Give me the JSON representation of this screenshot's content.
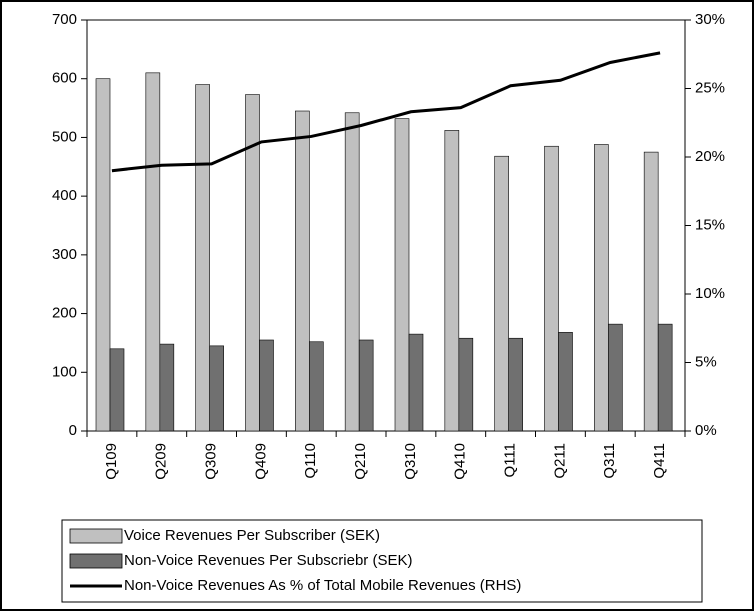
{
  "chart_data": {
    "type": "bar_line",
    "categories": [
      "Q109",
      "Q209",
      "Q309",
      "Q409",
      "Q110",
      "Q210",
      "Q310",
      "Q410",
      "Q111",
      "Q211",
      "Q311",
      "Q411"
    ],
    "series": [
      {
        "name": "Voice Revenues Per Subscriber (SEK)",
        "type": "bar",
        "color": "#c0c0c0",
        "values": [
          600,
          610,
          590,
          573,
          545,
          542,
          532,
          512,
          468,
          485,
          488,
          475
        ]
      },
      {
        "name": "Non-Voice Revenues Per Subscriebr (SEK)",
        "type": "bar",
        "color": "#707070",
        "values": [
          140,
          148,
          145,
          155,
          152,
          155,
          165,
          158,
          158,
          168,
          182,
          182
        ]
      },
      {
        "name": "Non-Voice Revenues As % of Total Mobile Revenues (RHS)",
        "type": "line",
        "color": "#000000",
        "axis": "y2",
        "values": [
          19.0,
          19.4,
          19.5,
          21.1,
          21.5,
          22.3,
          23.3,
          23.6,
          25.2,
          25.6,
          26.9,
          27.6
        ]
      }
    ],
    "ylim": [
      0,
      700
    ],
    "yticks": [
      0,
      100,
      200,
      300,
      400,
      500,
      600,
      700
    ],
    "y2lim": [
      0,
      30
    ],
    "y2ticks": [
      {
        "value": 0,
        "label": "0%"
      },
      {
        "value": 5,
        "label": "5%"
      },
      {
        "value": 10,
        "label": "10%"
      },
      {
        "value": 15,
        "label": "15%"
      },
      {
        "value": 20,
        "label": "20%"
      },
      {
        "value": 25,
        "label": "25%"
      },
      {
        "value": 30,
        "label": "30%"
      }
    ],
    "legend": "bottom"
  }
}
